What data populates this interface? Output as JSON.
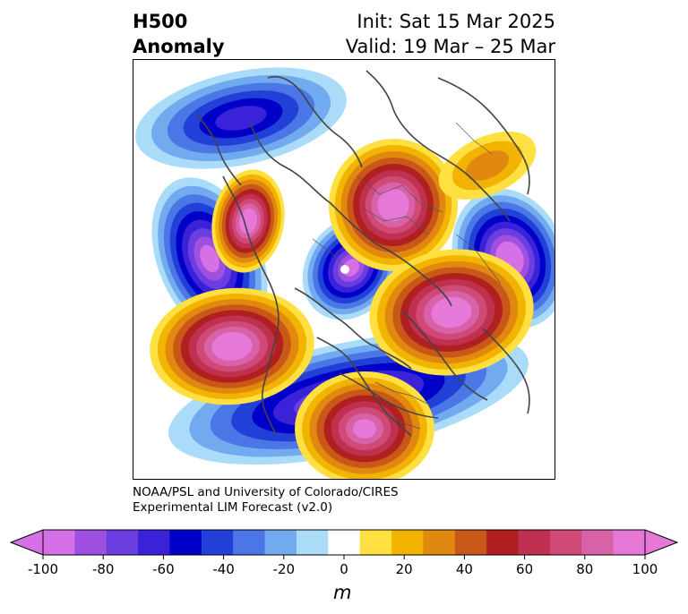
{
  "title": {
    "left_line1": "H500",
    "left_line2": "Anomaly",
    "right_line1": "Init: Sat 15 Mar 2025",
    "right_line2": "Valid: 19 Mar – 25 Mar"
  },
  "credit": {
    "line1": "NOAA/PSL and University of Colorado/CIRES",
    "line2": "Experimental LIM Forecast (v2.0)"
  },
  "colorbar": {
    "units": "m",
    "tick_labels": [
      "-100",
      "-80",
      "-60",
      "-40",
      "-20",
      "0",
      "20",
      "40",
      "60",
      "80",
      "100"
    ],
    "levels": [
      -100,
      -90,
      -80,
      -70,
      -60,
      -50,
      -40,
      -30,
      -20,
      -10,
      10,
      20,
      30,
      40,
      50,
      60,
      70,
      80,
      90,
      100
    ],
    "colors": [
      "#d670e6",
      "#a050e0",
      "#6a3ee0",
      "#3a22d8",
      "#0000c8",
      "#2040d8",
      "#4a76e6",
      "#72aaf0",
      "#aadcfa",
      "#ffffff",
      "#ffe040",
      "#f2b400",
      "#e08810",
      "#c85818",
      "#b02020",
      "#c03050",
      "#d04a78",
      "#d862a8",
      "#e678d8"
    ],
    "under_color": "#d670e6",
    "over_color": "#e678d8"
  },
  "map": {
    "projection": "north-polar-stereographic",
    "variable": "500 hPa geopotential height anomaly",
    "features": [
      {
        "label": "negative-anomaly-north-atlantic",
        "sign": "negative",
        "peak_m": -60
      },
      {
        "label": "negative-anomaly-siberia",
        "sign": "negative",
        "peak_m": -100
      },
      {
        "label": "negative-anomaly-arctic",
        "sign": "negative",
        "peak_m": -90
      },
      {
        "label": "negative-anomaly-western-canada",
        "sign": "negative",
        "peak_m": -90
      },
      {
        "label": "negative-anomaly-western-us",
        "sign": "negative",
        "peak_m": -80
      },
      {
        "label": "positive-anomaly-europe",
        "sign": "positive",
        "peak_m": 100
      },
      {
        "label": "positive-anomaly-east-asia",
        "sign": "positive",
        "peak_m": 100
      },
      {
        "label": "positive-anomaly-north-pacific",
        "sign": "positive",
        "peak_m": 100
      },
      {
        "label": "positive-anomaly-greenland",
        "sign": "positive",
        "peak_m": 100
      },
      {
        "label": "positive-anomaly-eastern-us",
        "sign": "positive",
        "peak_m": 90
      },
      {
        "label": "positive-anomaly-pacific-east",
        "sign": "positive",
        "peak_m": 30
      }
    ]
  }
}
